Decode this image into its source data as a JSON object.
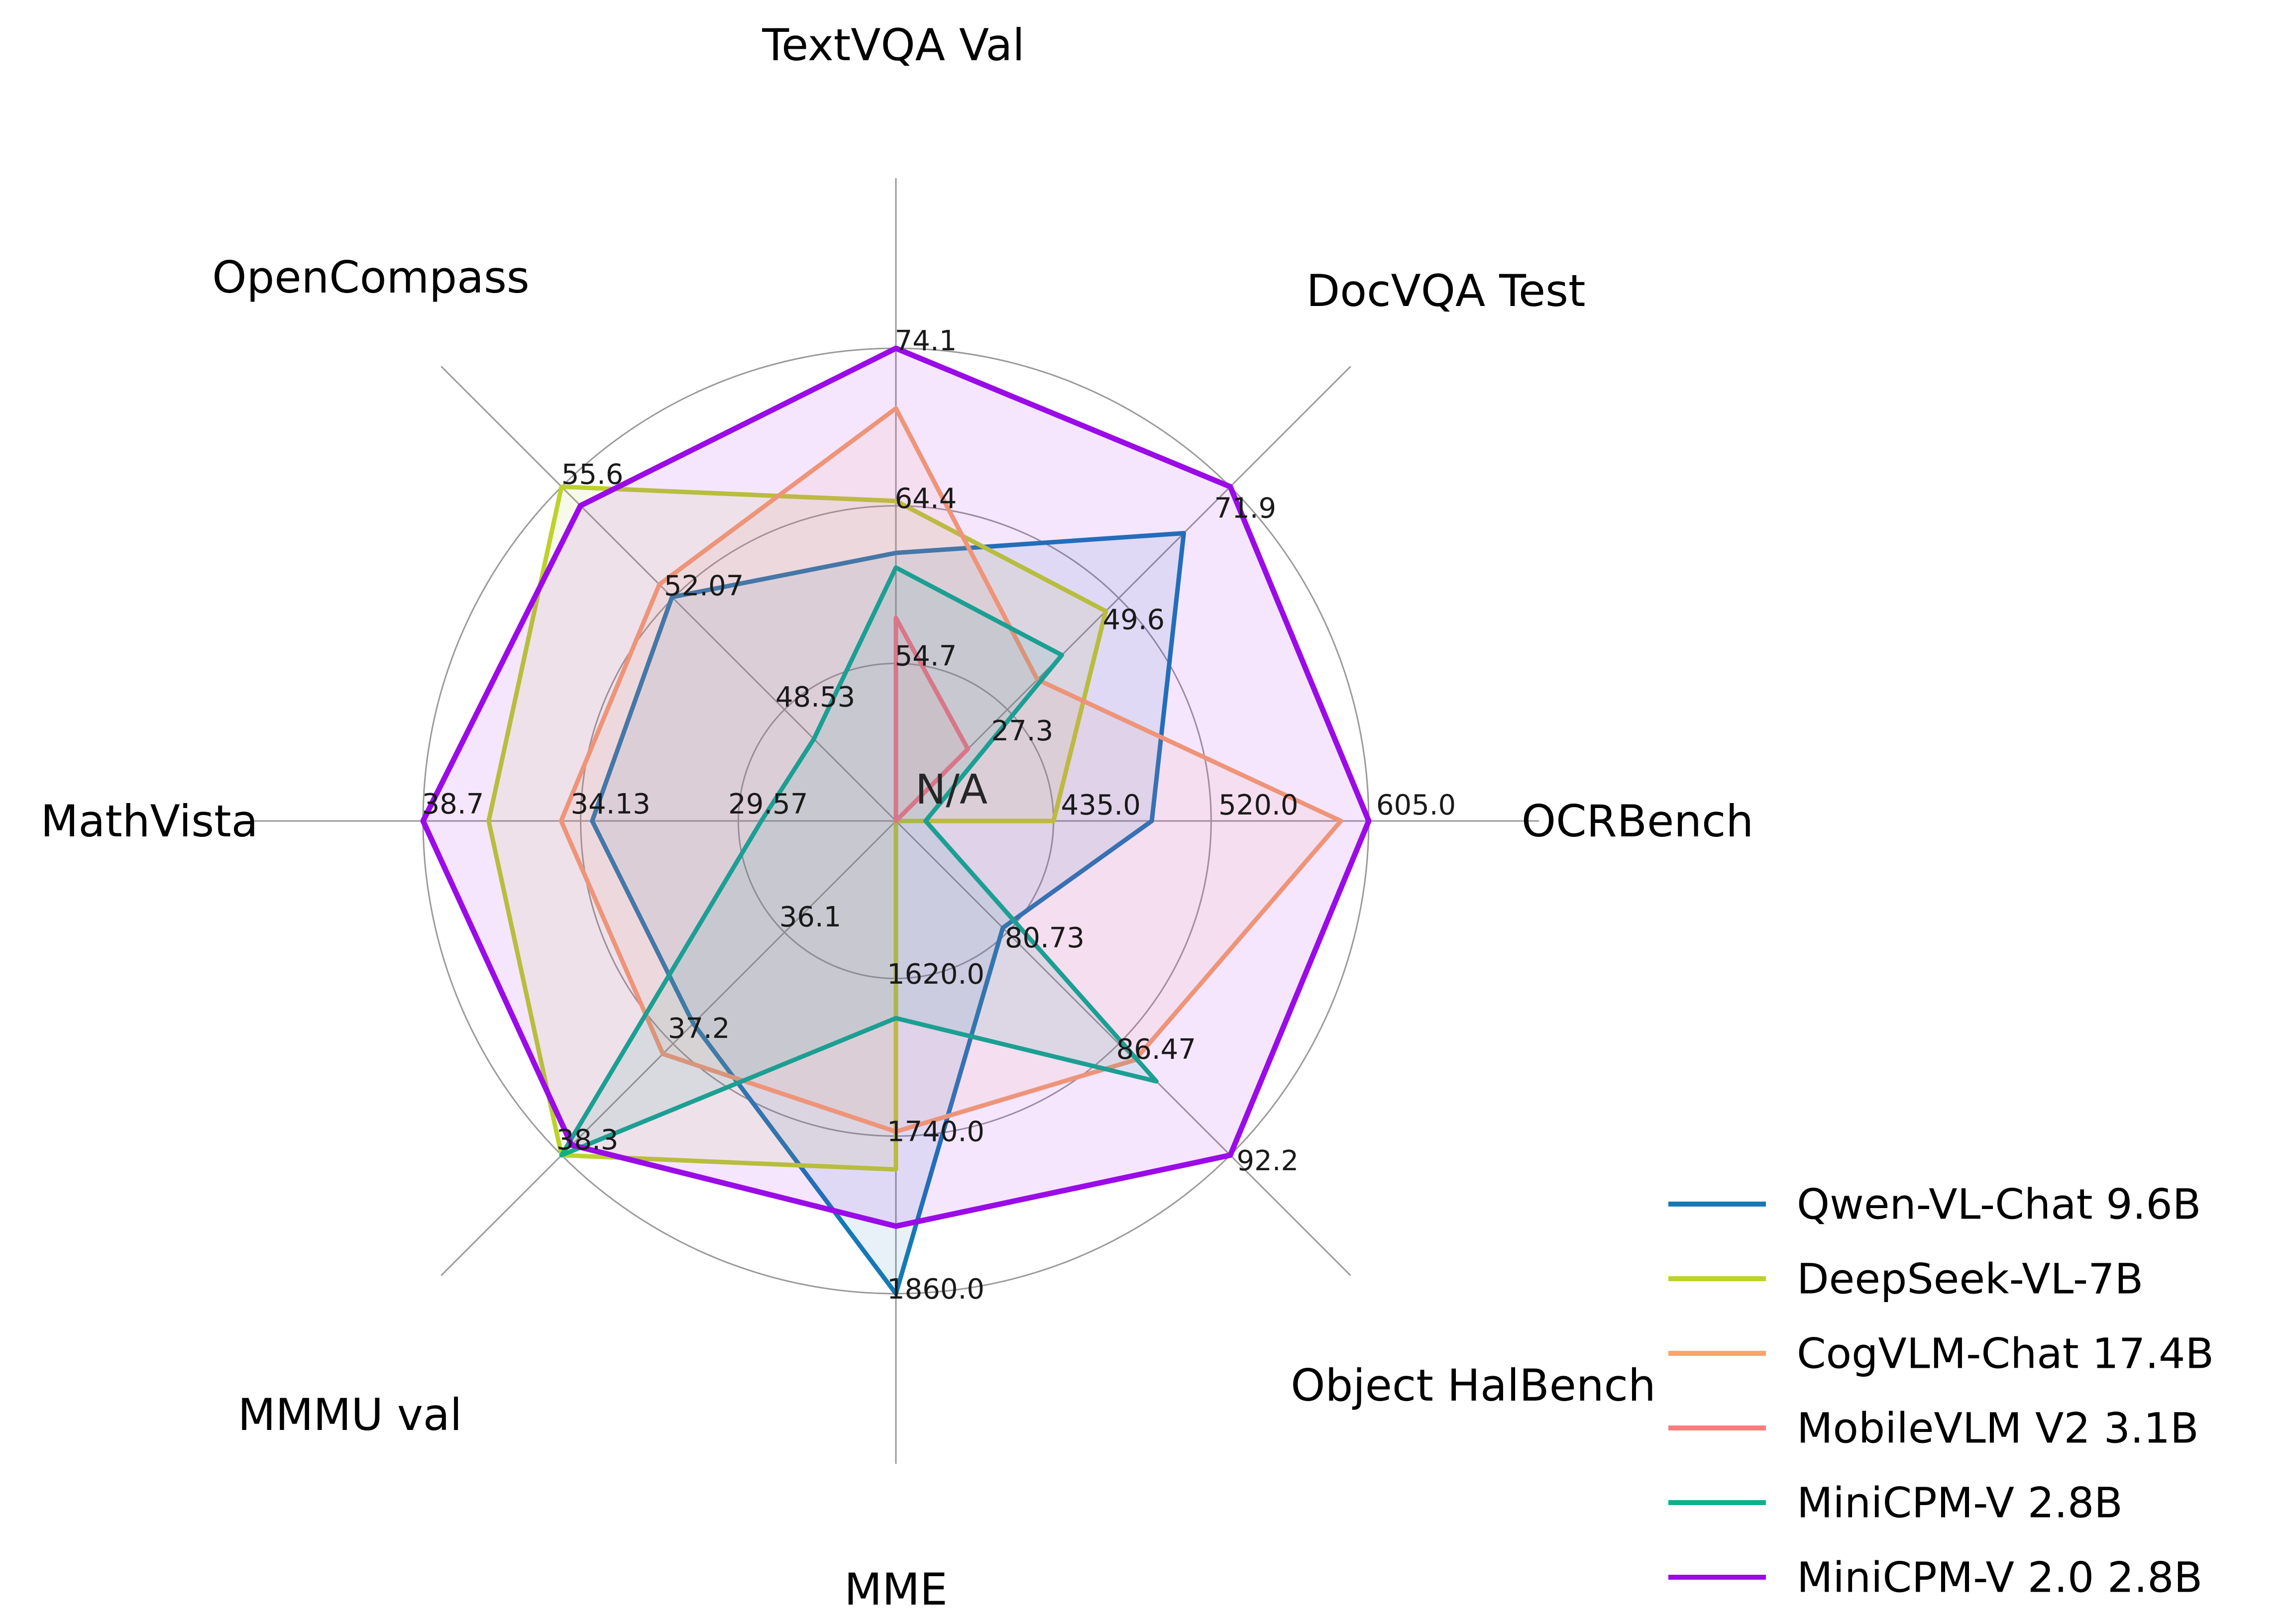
{
  "chart_data": {
    "type": "radar",
    "description": "Radar chart comparing multimodal LLM benchmark results across 8 axes, each axis with its own value range (outer ring = axis max, center = N/A).",
    "grid": true,
    "n_rings": 3,
    "legend_position": "lower right",
    "center_label": "N/A",
    "axes": [
      {
        "label": "TextVQA Val",
        "min": 45.0,
        "max": 74.1,
        "ticks": [
          "54.7",
          "64.4",
          "74.1"
        ]
      },
      {
        "label": "DocVQA Test",
        "min": 5.0,
        "max": 71.9,
        "ticks": [
          "27.3",
          "49.6",
          "71.9"
        ]
      },
      {
        "label": "OCRBench",
        "min": 350.0,
        "max": 605.0,
        "ticks": [
          "435.0",
          "520.0",
          "605.0"
        ]
      },
      {
        "label": "Object HalBench",
        "min": 75.0,
        "max": 92.2,
        "ticks": [
          "80.73",
          "86.47",
          "92.2"
        ]
      },
      {
        "label": "MME",
        "min": 1500.0,
        "max": 1860.0,
        "ticks": [
          "1620.0",
          "1740.0",
          "1860.0"
        ]
      },
      {
        "label": "MMMU val",
        "min": 35.0,
        "max": 38.3,
        "ticks": [
          "36.1",
          "37.2",
          "38.3"
        ]
      },
      {
        "label": "MathVista",
        "min": 25.0,
        "max": 38.7,
        "ticks": [
          "29.57",
          "34.13",
          "38.7"
        ]
      },
      {
        "label": "OpenCompass",
        "min": 45.0,
        "max": 55.6,
        "ticks": [
          "48.53",
          "52.07",
          "55.6"
        ]
      }
    ],
    "series": [
      {
        "name": "Qwen-VL-Chat 9.6B",
        "color": "#1679b5",
        "values": [
          61.5,
          62.6,
          488.0,
          80.5,
          1860.0,
          37.0,
          33.8,
          52.1
        ]
      },
      {
        "name": "DeepSeek-VL-7B",
        "color": "#bcd22b",
        "values": [
          64.7,
          47.0,
          435.0,
          null,
          1765.4,
          38.3,
          36.8,
          55.6
        ]
      },
      {
        "name": "CogVLM-Chat 17.4B",
        "color": "#f8a46c",
        "values": [
          70.4,
          33.3,
          590.0,
          87.3,
          1736.6,
          37.3,
          34.7,
          52.5
        ]
      },
      {
        "name": "MobileVLM V2 3.1B",
        "color": "#f87e7e",
        "values": [
          57.5,
          19.4,
          null,
          null,
          null,
          null,
          null,
          null
        ]
      },
      {
        "name": "MiniCPM-V 2.8B",
        "color": "#0eb089",
        "values": [
          60.6,
          38.2,
          366.0,
          88.4,
          1650.2,
          38.3,
          28.9,
          47.6
        ]
      },
      {
        "name": "MiniCPM-V 2.0 2.8B",
        "color": "#9a0be8",
        "values": [
          74.1,
          71.9,
          605.0,
          92.2,
          1808.6,
          38.2,
          38.7,
          55.0
        ]
      }
    ],
    "colors": {
      "grid": "#9a9a9a",
      "tick_text": "#1a1a1a",
      "title_text": "#000000",
      "background": "#ffffff"
    }
  }
}
